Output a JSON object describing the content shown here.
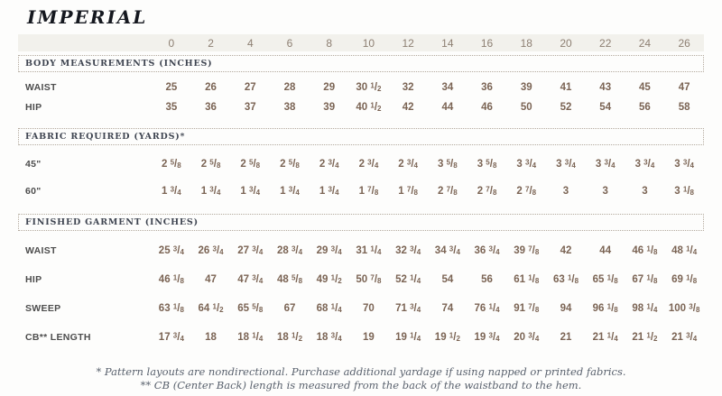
{
  "title": "IMPERIAL",
  "sizes": [
    "0",
    "2",
    "4",
    "6",
    "8",
    "10",
    "12",
    "14",
    "16",
    "18",
    "20",
    "22",
    "24",
    "26"
  ],
  "sections": [
    {
      "heading": "BODY MEASUREMENTS (INCHES)",
      "rows": [
        {
          "label": "WAIST",
          "values": [
            "25",
            "26",
            "27",
            "28",
            "29",
            "30 1/2",
            "32",
            "34",
            "36",
            "39",
            "41",
            "43",
            "45",
            "47"
          ]
        },
        {
          "label": "HIP",
          "values": [
            "35",
            "36",
            "37",
            "38",
            "39",
            "40 1/2",
            "42",
            "44",
            "46",
            "50",
            "52",
            "54",
            "56",
            "58"
          ]
        }
      ]
    },
    {
      "heading": "FABRIC REQUIRED (YARDS)*",
      "rows": [
        {
          "label": "45\"",
          "values": [
            "2 5/8",
            "2 5/8",
            "2 5/8",
            "2 5/8",
            "2 3/4",
            "2 3/4",
            "2 3/4",
            "3 5/8",
            "3 5/8",
            "3 3/4",
            "3 3/4",
            "3 3/4",
            "3 3/4",
            "3 3/4"
          ]
        },
        {
          "label": "60\"",
          "values": [
            "1 3/4",
            "1 3/4",
            "1 3/4",
            "1 3/4",
            "1 3/4",
            "1 7/8",
            "1 7/8",
            "2 7/8",
            "2 7/8",
            "2 7/8",
            "3",
            "3",
            "3",
            "3 1/8"
          ]
        }
      ]
    },
    {
      "heading": "FINISHED GARMENT (INCHES)",
      "rows": [
        {
          "label": "WAIST",
          "values": [
            "25 3/4",
            "26 3/4",
            "27 3/4",
            "28 3/4",
            "29 3/4",
            "31 1/4",
            "32 3/4",
            "34 3/4",
            "36 3/4",
            "39 7/8",
            "42",
            "44",
            "46 1/8",
            "48 1/4"
          ]
        },
        {
          "label": "HIP",
          "values": [
            "46 1/8",
            "47",
            "47 3/4",
            "48 5/8",
            "49 1/2",
            "50 7/8",
            "52 1/4",
            "54",
            "56",
            "61 1/8",
            "63 1/8",
            "65 1/8",
            "67 1/8",
            "69 1/8"
          ]
        },
        {
          "label": "SWEEP",
          "values": [
            "63 1/8",
            "64 1/2",
            "65 5/8",
            "67",
            "68 1/4",
            "70",
            "71 3/4",
            "74",
            "76 1/4",
            "91 7/8",
            "94",
            "96 1/8",
            "98 1/4",
            "100 3/8"
          ]
        },
        {
          "label": "CB** LENGTH",
          "values": [
            "17 3/4",
            "18",
            "18 1/4",
            "18 1/2",
            "18 3/4",
            "19",
            "19 1/4",
            "19 1/2",
            "19 3/4",
            "20 3/4",
            "21",
            "21 1/4",
            "21 1/2",
            "21 3/4"
          ]
        }
      ]
    }
  ],
  "footnotes": [
    "* Pattern layouts are nondirectional. Purchase additional yardage if using napped or printed fabrics.",
    "** CB (Center Back) length is measured from the back of the waistband to the hem."
  ],
  "colors": {
    "bg": "#fdfdfc",
    "header-bg": "#f2f1ec",
    "header-num": "#8d7f72",
    "value-num": "#7b6454",
    "label-col": "#4d4d4d",
    "section-col": "#3f4551",
    "dotted": "#b3a99d",
    "title-col": "#15181f",
    "footnote-col": "#59616d"
  }
}
